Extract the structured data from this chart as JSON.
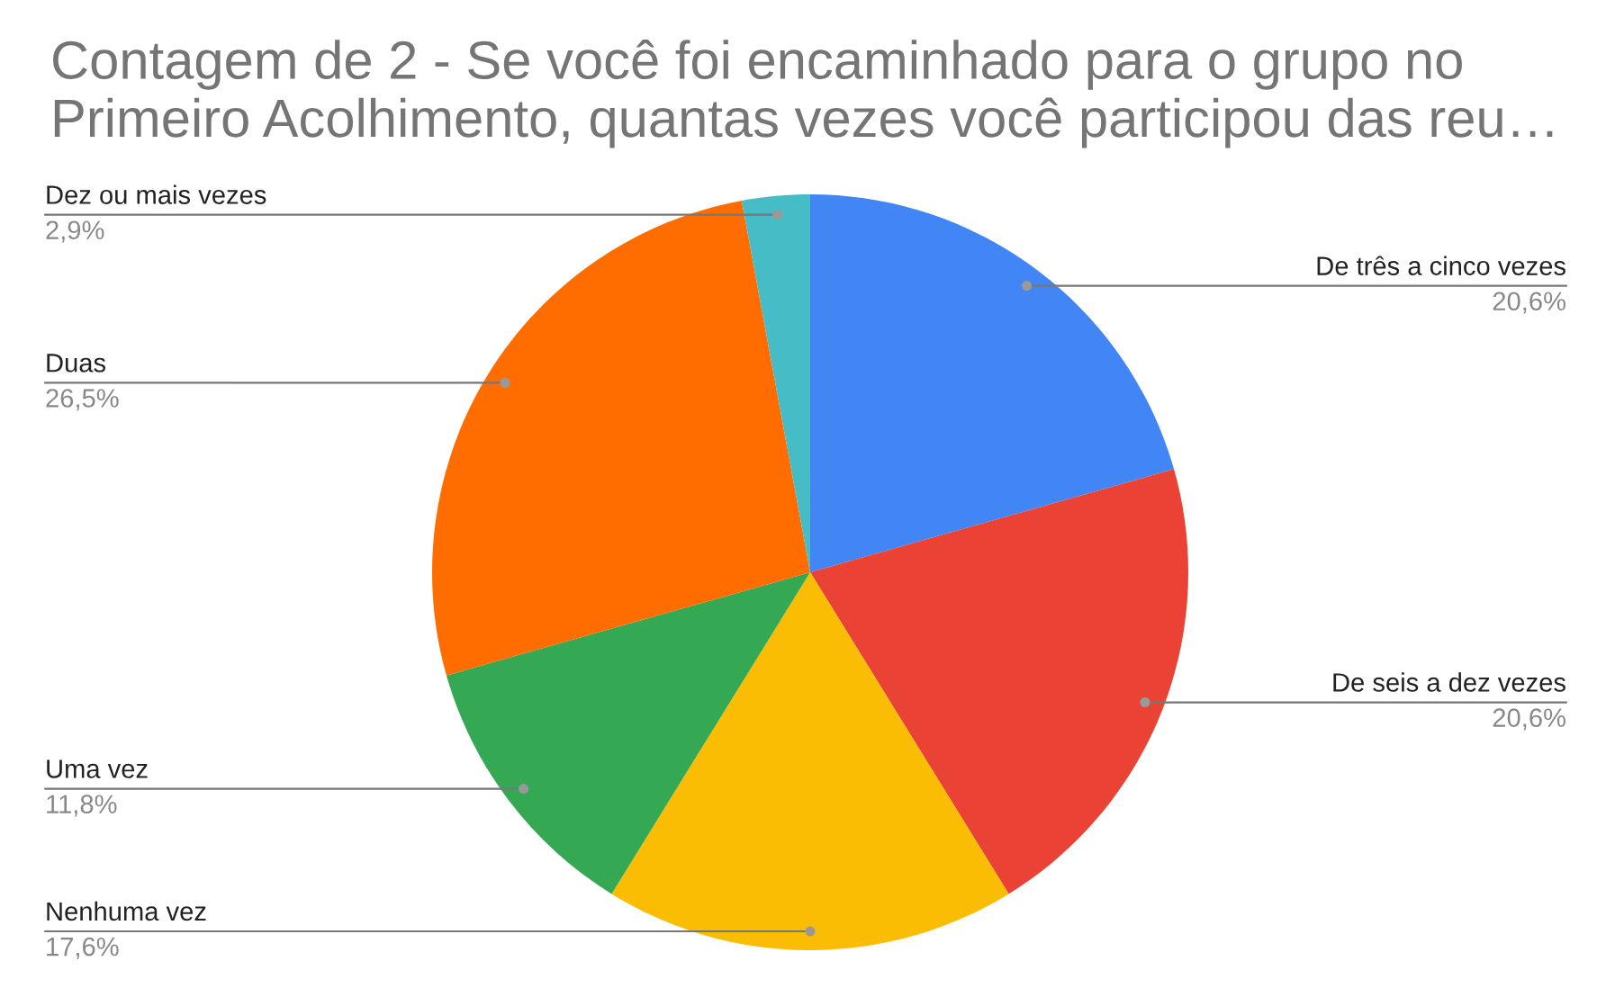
{
  "chart_data": {
    "type": "pie",
    "title": "Contagem de 2 - Se você foi encaminhado para o grupo no Primeiro Acolhimento, quantas vezes você participou das reu…",
    "categories": [
      "De três a cinco vezes",
      "De seis a dez vezes",
      "Nenhuma vez",
      "Uma vez",
      "Duas",
      "Dez ou mais vezes"
    ],
    "values": [
      20.6,
      20.6,
      17.6,
      11.8,
      26.5,
      2.9
    ],
    "value_labels": [
      "20,6%",
      "20,6%",
      "17,6%",
      "11,8%",
      "26,5%",
      "2,9%"
    ],
    "colors": [
      "#4285f4",
      "#ea4335",
      "#fbbc04",
      "#34a853",
      "#ff6d01",
      "#46bdc6"
    ],
    "legend": false
  }
}
